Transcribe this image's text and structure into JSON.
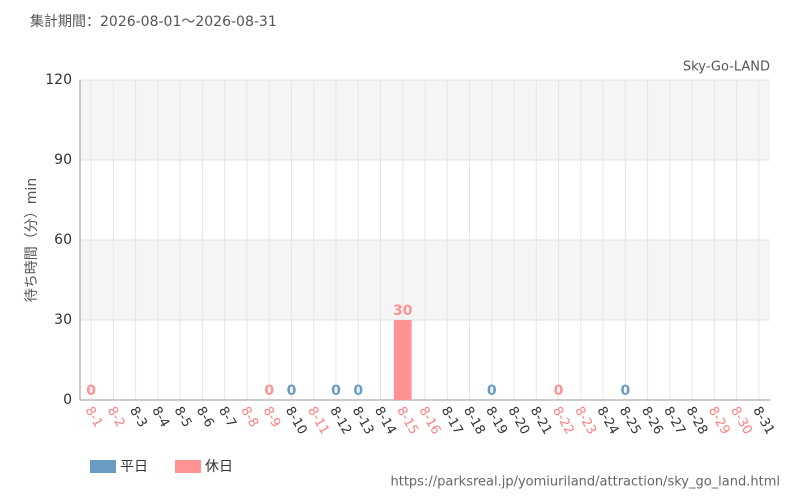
{
  "chart_data": {
    "type": "bar",
    "subtitle": "集計期間：2026-08-01～2026-08-31",
    "title": "Sky-Go-LAND",
    "y_label": "待ち時間（分）min",
    "source": "https://parksreal.jp/yomiuriland/attraction/sky_go_land.html",
    "categories": [
      "8-1",
      "8-2",
      "8-3",
      "8-4",
      "8-5",
      "8-6",
      "8-7",
      "8-8",
      "8-9",
      "8-10",
      "8-11",
      "8-12",
      "8-13",
      "8-14",
      "8-15",
      "8-16",
      "8-17",
      "8-18",
      "8-19",
      "8-20",
      "8-21",
      "8-22",
      "8-23",
      "8-24",
      "8-25",
      "8-26",
      "8-27",
      "8-28",
      "8-29",
      "8-30",
      "8-31"
    ],
    "category_colors": [
      "#ff8080",
      "#ff8080",
      "#333333",
      "#333333",
      "#333333",
      "#333333",
      "#333333",
      "#ff8080",
      "#ff8080",
      "#333333",
      "#ff8080",
      "#333333",
      "#333333",
      "#333333",
      "#ff8080",
      "#ff8080",
      "#333333",
      "#333333",
      "#333333",
      "#333333",
      "#333333",
      "#ff8080",
      "#ff8080",
      "#333333",
      "#333333",
      "#333333",
      "#333333",
      "#333333",
      "#ff8080",
      "#ff8080",
      "#333333"
    ],
    "series": [
      {
        "name": "平日",
        "color": "#6a9bc3",
        "values": [
          null,
          null,
          null,
          null,
          null,
          null,
          null,
          null,
          null,
          0,
          null,
          0,
          0,
          null,
          null,
          null,
          null,
          null,
          0,
          null,
          null,
          null,
          null,
          null,
          0,
          null,
          null,
          null,
          null,
          null,
          null
        ]
      },
      {
        "name": "休日",
        "color": "#ff9393",
        "values": [
          0,
          null,
          null,
          null,
          null,
          null,
          null,
          null,
          0,
          null,
          null,
          null,
          null,
          null,
          30,
          null,
          null,
          null,
          null,
          null,
          null,
          0,
          null,
          null,
          null,
          null,
          null,
          null,
          null,
          null,
          null
        ]
      }
    ],
    "ylim": [
      0,
      120
    ],
    "yticks": [
      0,
      30,
      60,
      90,
      120
    ],
    "grid": true
  }
}
